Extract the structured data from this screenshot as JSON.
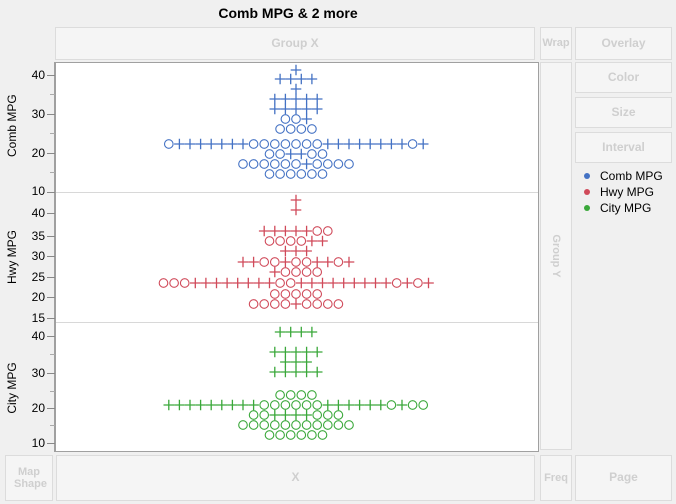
{
  "title": "Comb MPG & 2 more",
  "zones": {
    "group_x": "Group X",
    "wrap": "Wrap",
    "overlay": "Overlay",
    "color": "Color",
    "size": "Size",
    "interval": "Interval",
    "group_y": "Group Y",
    "map_shape": "Map Shape",
    "x": "X",
    "freq": "Freq",
    "page": "Page"
  },
  "legend": [
    {
      "label": "Comb MPG",
      "color": "#4472c4"
    },
    {
      "label": "Hwy MPG",
      "color": "#d04a5a"
    },
    {
      "label": "City MPG",
      "color": "#3aa83a"
    }
  ],
  "panels": [
    {
      "label": "Comb MPG",
      "ticks": [
        "40",
        "30",
        "20",
        "10"
      ]
    },
    {
      "label": "Hwy MPG",
      "ticks": [
        "40",
        "35",
        "30",
        "25",
        "20",
        "15"
      ]
    },
    {
      "label": "City MPG",
      "ticks": [
        "40",
        "30",
        "20",
        "10"
      ]
    }
  ],
  "chart_data": {
    "type": "scatter",
    "title": "Comb MPG & 2 more",
    "subtype": "beeswarm / dot plot of points by variable",
    "series": [
      {
        "name": "Comb MPG",
        "axis_range": [
          10,
          42
        ],
        "ticks": [
          10,
          20,
          30,
          40
        ],
        "color": "#4472c4"
      },
      {
        "name": "Hwy MPG",
        "axis_range": [
          15,
          42
        ],
        "ticks": [
          15,
          20,
          25,
          30,
          35,
          40
        ],
        "color": "#d04a5a"
      },
      {
        "name": "City MPG",
        "axis_range": [
          8,
          42
        ],
        "ticks": [
          10,
          20,
          30,
          40
        ],
        "color": "#3aa83a"
      }
    ],
    "marker_types": [
      "plus",
      "circle"
    ]
  }
}
